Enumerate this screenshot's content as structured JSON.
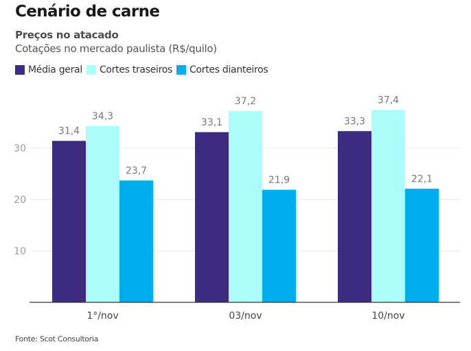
{
  "header": {
    "title": "Cenário de carne",
    "subtitle": "Preços no atacado",
    "description": "Cotações no mercado paulista (R$/quilo)"
  },
  "footer": {
    "source": "Fonte: Scot Consultoria"
  },
  "chart_data": {
    "type": "bar",
    "title": "Cenário de carne",
    "subtitle": "Preços no atacado",
    "description": "Cotações no mercado paulista (R$/quilo)",
    "xlabel": "",
    "ylabel": "",
    "categories": [
      "1°/nov",
      "03/nov",
      "10/nov"
    ],
    "series": [
      {
        "name": "Média geral",
        "color": "#3d2b82",
        "values": [
          31.4,
          33.1,
          33.3
        ],
        "labels": [
          "31,4",
          "33,1",
          "33,3"
        ]
      },
      {
        "name": "Cortes traseiros",
        "color": "#adfcfc",
        "values": [
          34.3,
          37.2,
          37.4
        ],
        "labels": [
          "34,3",
          "37,2",
          "37,4"
        ]
      },
      {
        "name": "Cortes dianteiros",
        "color": "#00adee",
        "values": [
          23.7,
          21.9,
          22.1
        ],
        "labels": [
          "23,7",
          "21,9",
          "22,1"
        ]
      }
    ],
    "yticks": [
      10,
      20,
      30
    ],
    "ylim": [
      0,
      40
    ],
    "grid": true,
    "legend": "top-left",
    "source": "Fonte: Scot Consultoria"
  }
}
